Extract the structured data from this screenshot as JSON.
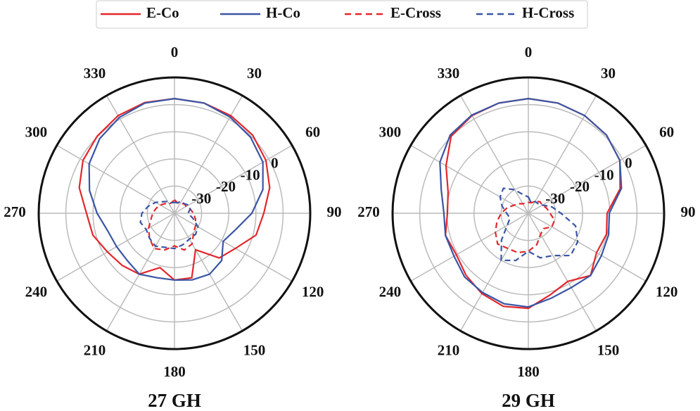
{
  "chart_data": [
    {
      "type": "polar",
      "title": "27 GH",
      "direction": "clockwise",
      "zero_location": "N",
      "x": [
        0,
        15,
        30,
        45,
        60,
        75,
        90,
        105,
        120,
        135,
        150,
        165,
        180,
        195,
        210,
        225,
        240,
        255,
        270,
        285,
        300,
        315,
        330,
        345
      ],
      "xticks": [
        0,
        30,
        60,
        90,
        120,
        150,
        180,
        210,
        240,
        270,
        300,
        330
      ],
      "ylim": [
        -40,
        10
      ],
      "yticks": [
        -30,
        -20,
        -10,
        0
      ],
      "grid": true,
      "series": [
        {
          "name": "E-Co",
          "color": "#e3262b",
          "linestyle": "solid",
          "values": [
            2.2,
            2.0,
            1.5,
            0.7,
            -1.1,
            -3.7,
            -7.1,
            -8.9,
            -14.1,
            -16.7,
            -24.5,
            -15.4,
            -15.4,
            -19.3,
            -14.1,
            -12.8,
            -11.5,
            -8.9,
            -7.6,
            -3.7,
            -1.1,
            0.2,
            1.5,
            2.2
          ]
        },
        {
          "name": "H-Co",
          "color": "#3a55a4",
          "linestyle": "solid",
          "values": [
            2.2,
            2.0,
            0.9,
            -0.4,
            -2.4,
            -6.3,
            -11.5,
            -16.7,
            -19.3,
            -15.4,
            -14.1,
            -14.6,
            -15.4,
            -15.4,
            -14.1,
            -15.4,
            -15.4,
            -14.6,
            -11.5,
            -7.6,
            -3.7,
            -1.1,
            0.7,
            2.0
          ]
        },
        {
          "name": "E-Cross",
          "color": "#e3262b",
          "linestyle": "dashed",
          "values": [
            -35,
            -36,
            -36,
            -35,
            -35,
            -34,
            -33,
            -32,
            -31,
            -30,
            -27,
            -26,
            -28,
            -26,
            -25,
            -27,
            -29,
            -31,
            -32,
            -33,
            -34,
            -35,
            -36,
            -36
          ]
        },
        {
          "name": "H-Cross",
          "color": "#3a55a4",
          "linestyle": "dashed",
          "values": [
            -36,
            -36,
            -35,
            -35,
            -34,
            -34,
            -35,
            -33,
            -30,
            -29,
            -29,
            -28,
            -27,
            -27,
            -26,
            -27,
            -28,
            -27,
            -28,
            -30,
            -32,
            -34,
            -35,
            -36
          ]
        }
      ]
    },
    {
      "type": "polar",
      "title": "29 GH",
      "direction": "clockwise",
      "zero_location": "N",
      "x": [
        0,
        15,
        30,
        45,
        60,
        75,
        90,
        105,
        120,
        135,
        150,
        165,
        180,
        195,
        210,
        225,
        240,
        255,
        270,
        285,
        300,
        315,
        330,
        345
      ],
      "xticks": [
        0,
        30,
        60,
        90,
        120,
        150,
        180,
        210,
        240,
        270,
        300,
        330
      ],
      "ylim": [
        -40,
        10
      ],
      "yticks": [
        -30,
        -20,
        -10,
        0
      ],
      "grid": true,
      "series": [
        {
          "name": "E-Co",
          "color": "#e3262b",
          "linestyle": "solid",
          "values": [
            2.2,
            2.0,
            1.5,
            0.7,
            -1.1,
            -5.0,
            -11.0,
            -10.2,
            -11.0,
            -7.6,
            -11.0,
            -8.9,
            -5.0,
            -4.5,
            -5.8,
            -7.6,
            -9.4,
            -8.4,
            -10.2,
            -9.4,
            -5.0,
            0.2,
            1.5,
            2.0
          ]
        },
        {
          "name": "H-Co",
          "color": "#3a55a4",
          "linestyle": "solid",
          "values": [
            2.2,
            2.0,
            1.5,
            0.7,
            -1.1,
            -4.5,
            -10.2,
            -9.4,
            -8.9,
            -7.6,
            -8.4,
            -7.6,
            -5.5,
            -5.5,
            -6.3,
            -6.8,
            -8.4,
            -8.4,
            -8.9,
            -6.8,
            -2.4,
            0.7,
            1.7,
            2.0
          ]
        },
        {
          "name": "E-Cross",
          "color": "#e3262b",
          "linestyle": "dashed",
          "values": [
            -36,
            -36,
            -35,
            -34,
            -34,
            -33,
            -32,
            -30,
            -30,
            -32,
            -31,
            -28,
            -26,
            -25,
            -25,
            -24,
            -26,
            -28,
            -30,
            -32,
            -34,
            -35,
            -36,
            -36
          ]
        },
        {
          "name": "H-Cross",
          "color": "#3a55a4",
          "linestyle": "dashed",
          "values": [
            -34,
            -36,
            -35,
            -35,
            -34,
            -31,
            -28,
            -22,
            -19,
            -18,
            -22,
            -23,
            -26,
            -22,
            -20,
            -26,
            -31,
            -33,
            -32,
            -30,
            -28,
            -27,
            -30,
            -33
          ]
        }
      ]
    }
  ]
}
